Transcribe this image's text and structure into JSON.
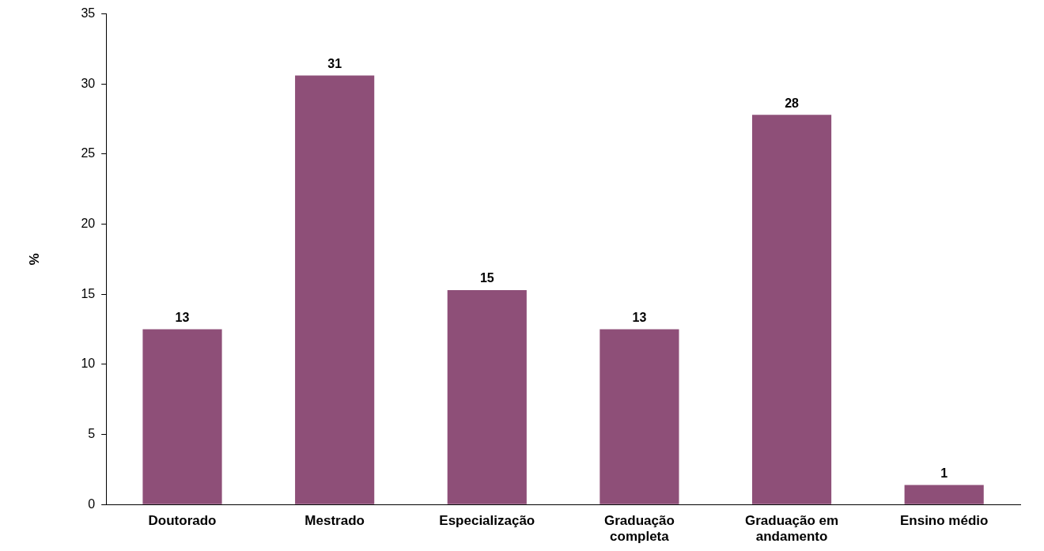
{
  "chart_data": {
    "type": "bar",
    "ylabel": "%",
    "categories": [
      "Doutorado",
      "Mestrado",
      "Especialização",
      "Graduação completa",
      "Graduação em andamento",
      "Ensino médio"
    ],
    "values": [
      12.5,
      30.6,
      15.3,
      12.5,
      27.8,
      1.4
    ],
    "value_labels": [
      "13",
      "31",
      "15",
      "13",
      "28",
      "1"
    ],
    "color": "#8e4f78",
    "ylim": [
      0,
      35
    ],
    "yticks": [
      0,
      5,
      10,
      15,
      20,
      25,
      30,
      35
    ],
    "grid": false,
    "legend": false
  }
}
